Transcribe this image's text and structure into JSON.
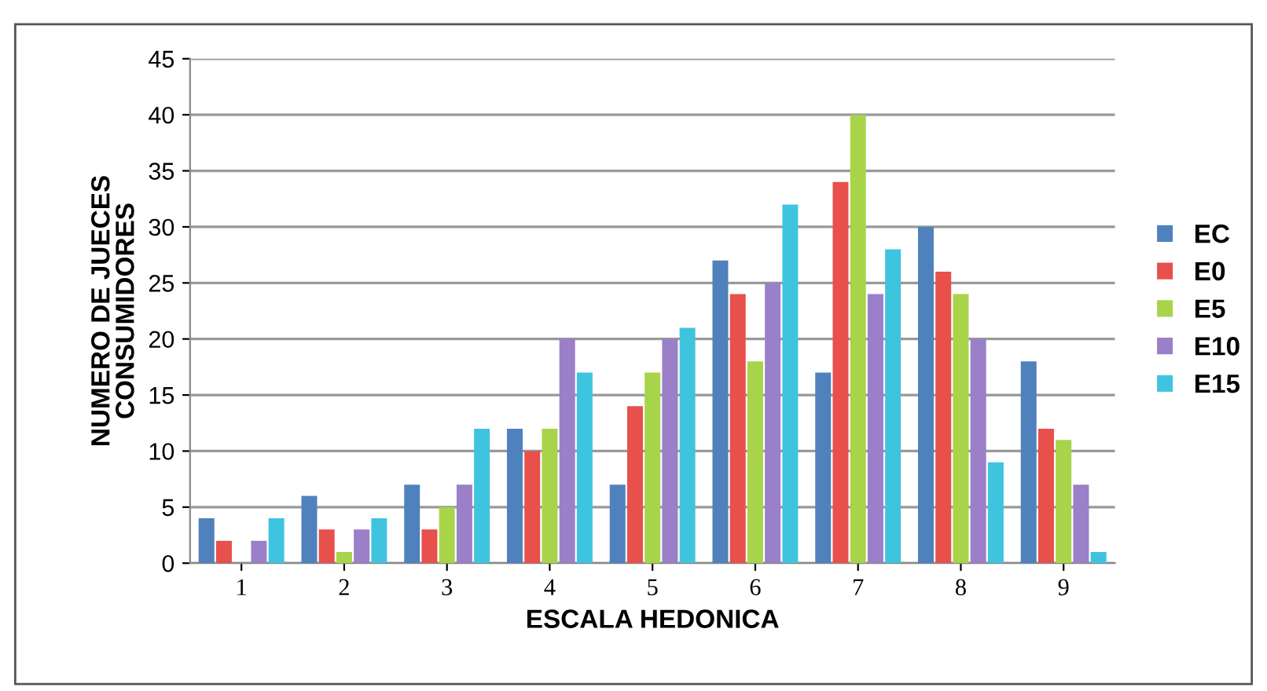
{
  "chart_data": {
    "type": "bar",
    "xlabel": "ESCALA HEDONICA",
    "ylabel": "NUMERO DE JUECES\nCONSUMIDORES",
    "categories": [
      "1",
      "2",
      "3",
      "4",
      "5",
      "6",
      "7",
      "8",
      "9"
    ],
    "series": [
      {
        "name": "EC",
        "color": "#4f81bd",
        "values": [
          4,
          6,
          7,
          12,
          7,
          27,
          17,
          30,
          18
        ]
      },
      {
        "name": "E0",
        "color": "#e8504c",
        "values": [
          2,
          3,
          3,
          10,
          14,
          24,
          34,
          26,
          12
        ]
      },
      {
        "name": "E5",
        "color": "#a8d44a",
        "values": [
          0,
          1,
          5,
          12,
          17,
          18,
          40,
          24,
          11
        ]
      },
      {
        "name": "E10",
        "color": "#9b7fc8",
        "values": [
          2,
          3,
          7,
          20,
          20,
          25,
          24,
          20,
          7
        ]
      },
      {
        "name": "E15",
        "color": "#3fc4e0",
        "values": [
          4,
          4,
          12,
          17,
          21,
          32,
          28,
          9,
          1
        ]
      }
    ],
    "ylim": [
      0,
      45
    ],
    "yticks": [
      0,
      5,
      10,
      15,
      20,
      25,
      30,
      35,
      40,
      45
    ],
    "grid": "y",
    "legend": "right"
  }
}
